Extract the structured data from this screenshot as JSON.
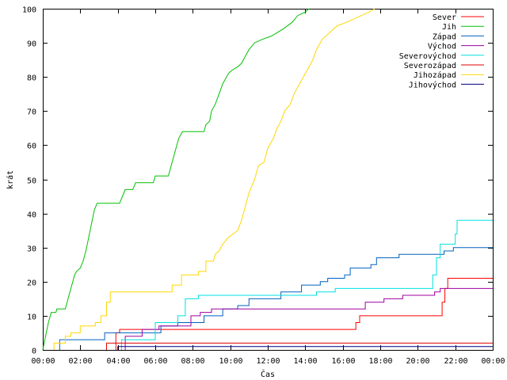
{
  "chart_data": {
    "type": "line",
    "title": "",
    "xlabel": "Čas",
    "ylabel": "krát",
    "xlim": [
      0,
      24
    ],
    "ylim": [
      0,
      100
    ],
    "x_ticks": [
      {
        "value": 0,
        "label": "00:00"
      },
      {
        "value": 2,
        "label": "02:00"
      },
      {
        "value": 4,
        "label": "04:00"
      },
      {
        "value": 6,
        "label": "06:00"
      },
      {
        "value": 8,
        "label": "08:00"
      },
      {
        "value": 10,
        "label": "10:00"
      },
      {
        "value": 12,
        "label": "12:00"
      },
      {
        "value": 14,
        "label": "14:00"
      },
      {
        "value": 16,
        "label": "16:00"
      },
      {
        "value": 18,
        "label": "18:00"
      },
      {
        "value": 20,
        "label": "20:00"
      },
      {
        "value": 22,
        "label": "22:00"
      },
      {
        "value": 24,
        "label": "00:00"
      }
    ],
    "y_ticks": [
      0,
      10,
      20,
      30,
      40,
      50,
      60,
      70,
      80,
      90,
      100
    ],
    "grid": false,
    "legend_position": "top-right",
    "series": [
      {
        "name": "Sever",
        "color": "#ff0000",
        "points": [
          [
            3.9,
            0
          ],
          [
            3.9,
            5
          ],
          [
            4.1,
            5
          ],
          [
            4.1,
            6
          ],
          [
            16.7,
            6
          ],
          [
            16.7,
            8
          ],
          [
            16.9,
            8
          ],
          [
            16.9,
            10
          ],
          [
            21.3,
            10
          ],
          [
            21.3,
            14
          ],
          [
            21.45,
            14
          ],
          [
            21.45,
            18
          ],
          [
            21.6,
            18
          ],
          [
            21.6,
            21
          ],
          [
            24,
            21
          ]
        ]
      },
      {
        "name": "Jih",
        "color": "#00c000",
        "points": [
          [
            0,
            0
          ],
          [
            0.15,
            4
          ],
          [
            0.3,
            8
          ],
          [
            0.45,
            11
          ],
          [
            0.7,
            11
          ],
          [
            0.75,
            12
          ],
          [
            1.2,
            12
          ],
          [
            1.3,
            14
          ],
          [
            1.4,
            16
          ],
          [
            1.5,
            18
          ],
          [
            1.6,
            20
          ],
          [
            1.7,
            22
          ],
          [
            1.8,
            23
          ],
          [
            2.0,
            24
          ],
          [
            2.15,
            26
          ],
          [
            2.3,
            29
          ],
          [
            2.45,
            33
          ],
          [
            2.6,
            37
          ],
          [
            2.75,
            41
          ],
          [
            2.9,
            43
          ],
          [
            4.1,
            43
          ],
          [
            4.25,
            45
          ],
          [
            4.4,
            47
          ],
          [
            4.8,
            47
          ],
          [
            4.95,
            49
          ],
          [
            5.9,
            49
          ],
          [
            6.0,
            51
          ],
          [
            6.7,
            51
          ],
          [
            6.8,
            53
          ],
          [
            6.9,
            55
          ],
          [
            7.0,
            57
          ],
          [
            7.1,
            59
          ],
          [
            7.25,
            62
          ],
          [
            7.45,
            64
          ],
          [
            8.6,
            64
          ],
          [
            8.7,
            66
          ],
          [
            8.9,
            67
          ],
          [
            9.0,
            70
          ],
          [
            9.2,
            72
          ],
          [
            9.4,
            75
          ],
          [
            9.6,
            78
          ],
          [
            9.9,
            81
          ],
          [
            10.1,
            82
          ],
          [
            10.4,
            83
          ],
          [
            10.6,
            84
          ],
          [
            10.8,
            86
          ],
          [
            11.0,
            88
          ],
          [
            11.3,
            90
          ],
          [
            11.7,
            91
          ],
          [
            12.2,
            92
          ],
          [
            12.8,
            94
          ],
          [
            13.3,
            96
          ],
          [
            13.6,
            98
          ],
          [
            14.0,
            99
          ],
          [
            14.2,
            100
          ]
        ]
      },
      {
        "name": "Západ",
        "color": "#0060c0",
        "points": [
          [
            0.9,
            0
          ],
          [
            0.9,
            3
          ],
          [
            3.3,
            3
          ],
          [
            3.3,
            5
          ],
          [
            6.3,
            5
          ],
          [
            6.3,
            7
          ],
          [
            7.2,
            7
          ],
          [
            7.2,
            8
          ],
          [
            8.6,
            8
          ],
          [
            8.6,
            10
          ],
          [
            9.6,
            10
          ],
          [
            9.6,
            12
          ],
          [
            10.4,
            12
          ],
          [
            10.4,
            13
          ],
          [
            11.0,
            13
          ],
          [
            11.0,
            15
          ],
          [
            12.7,
            15
          ],
          [
            12.7,
            17
          ],
          [
            13.8,
            17
          ],
          [
            13.8,
            19
          ],
          [
            14.8,
            19
          ],
          [
            14.8,
            20
          ],
          [
            15.2,
            20
          ],
          [
            15.2,
            21
          ],
          [
            16.1,
            21
          ],
          [
            16.1,
            22
          ],
          [
            16.4,
            22
          ],
          [
            16.4,
            24
          ],
          [
            17.5,
            24
          ],
          [
            17.5,
            25
          ],
          [
            17.8,
            25
          ],
          [
            17.8,
            27
          ],
          [
            19.0,
            27
          ],
          [
            19.0,
            28
          ],
          [
            21.4,
            28
          ],
          [
            21.4,
            29
          ],
          [
            21.9,
            29
          ],
          [
            21.9,
            30
          ],
          [
            24,
            30
          ]
        ]
      },
      {
        "name": "Východ",
        "color": "#a000a0",
        "points": [
          [
            4.4,
            0
          ],
          [
            4.4,
            4
          ],
          [
            5.3,
            4
          ],
          [
            5.3,
            6
          ],
          [
            6.2,
            6
          ],
          [
            6.2,
            7
          ],
          [
            7.9,
            7
          ],
          [
            7.9,
            10
          ],
          [
            8.4,
            10
          ],
          [
            8.4,
            11
          ],
          [
            9.0,
            11
          ],
          [
            9.0,
            12
          ],
          [
            17.2,
            12
          ],
          [
            17.2,
            14
          ],
          [
            18.2,
            14
          ],
          [
            18.2,
            15
          ],
          [
            19.2,
            15
          ],
          [
            19.2,
            16
          ],
          [
            20.9,
            16
          ],
          [
            20.9,
            17
          ],
          [
            21.2,
            17
          ],
          [
            21.2,
            18
          ],
          [
            24,
            18
          ]
        ]
      },
      {
        "name": "Severovýchod",
        "color": "#00e0e0",
        "points": [
          [
            4.2,
            0
          ],
          [
            4.2,
            3
          ],
          [
            6.0,
            3
          ],
          [
            6.0,
            8
          ],
          [
            7.2,
            8
          ],
          [
            7.2,
            10
          ],
          [
            7.6,
            10
          ],
          [
            7.6,
            15
          ],
          [
            8.3,
            15
          ],
          [
            8.3,
            16
          ],
          [
            14.6,
            16
          ],
          [
            14.6,
            17
          ],
          [
            15.6,
            17
          ],
          [
            15.6,
            18
          ],
          [
            20.8,
            18
          ],
          [
            20.8,
            22
          ],
          [
            21.0,
            22
          ],
          [
            21.0,
            27
          ],
          [
            21.2,
            27
          ],
          [
            21.2,
            31
          ],
          [
            22.0,
            31
          ],
          [
            22.0,
            34
          ],
          [
            22.1,
            34
          ],
          [
            22.1,
            38
          ],
          [
            24,
            38
          ]
        ]
      },
      {
        "name": "Severozápad",
        "color": "#e00000",
        "points": [
          [
            3.4,
            0
          ],
          [
            3.4,
            2
          ],
          [
            24,
            2
          ]
        ]
      },
      {
        "name": "Jihozápad",
        "color": "#ffd700",
        "points": [
          [
            0.6,
            0
          ],
          [
            0.6,
            2
          ],
          [
            1.2,
            2
          ],
          [
            1.2,
            4
          ],
          [
            1.5,
            4
          ],
          [
            1.5,
            5
          ],
          [
            2.0,
            5
          ],
          [
            2.0,
            7
          ],
          [
            2.8,
            7
          ],
          [
            2.8,
            8
          ],
          [
            3.1,
            8
          ],
          [
            3.1,
            10
          ],
          [
            3.4,
            10
          ],
          [
            3.4,
            14
          ],
          [
            3.6,
            14
          ],
          [
            3.6,
            17
          ],
          [
            6.9,
            17
          ],
          [
            6.9,
            19
          ],
          [
            7.4,
            19
          ],
          [
            7.4,
            22
          ],
          [
            8.3,
            22
          ],
          [
            8.3,
            23
          ],
          [
            8.7,
            23
          ],
          [
            8.7,
            26
          ],
          [
            9.1,
            26
          ],
          [
            9.2,
            28
          ],
          [
            9.4,
            29
          ],
          [
            9.6,
            31
          ],
          [
            9.9,
            33
          ],
          [
            10.4,
            35
          ],
          [
            10.6,
            38
          ],
          [
            10.8,
            42
          ],
          [
            11.0,
            46
          ],
          [
            11.3,
            50
          ],
          [
            11.5,
            54
          ],
          [
            11.8,
            55
          ],
          [
            12.0,
            59
          ],
          [
            12.3,
            62
          ],
          [
            12.5,
            65
          ],
          [
            12.7,
            67
          ],
          [
            12.9,
            70
          ],
          [
            13.2,
            72
          ],
          [
            13.4,
            75
          ],
          [
            13.7,
            78
          ],
          [
            14.1,
            82
          ],
          [
            14.4,
            85
          ],
          [
            14.6,
            88
          ],
          [
            14.9,
            91
          ],
          [
            15.3,
            93
          ],
          [
            15.7,
            95
          ],
          [
            16.2,
            96
          ],
          [
            16.6,
            97
          ],
          [
            17.0,
            98
          ],
          [
            17.4,
            99
          ],
          [
            17.7,
            100
          ]
        ]
      },
      {
        "name": "Jihovýchod",
        "color": "#000080",
        "points": [
          [
            4.0,
            0
          ],
          [
            4.0,
            1
          ],
          [
            24,
            1
          ]
        ]
      }
    ]
  }
}
